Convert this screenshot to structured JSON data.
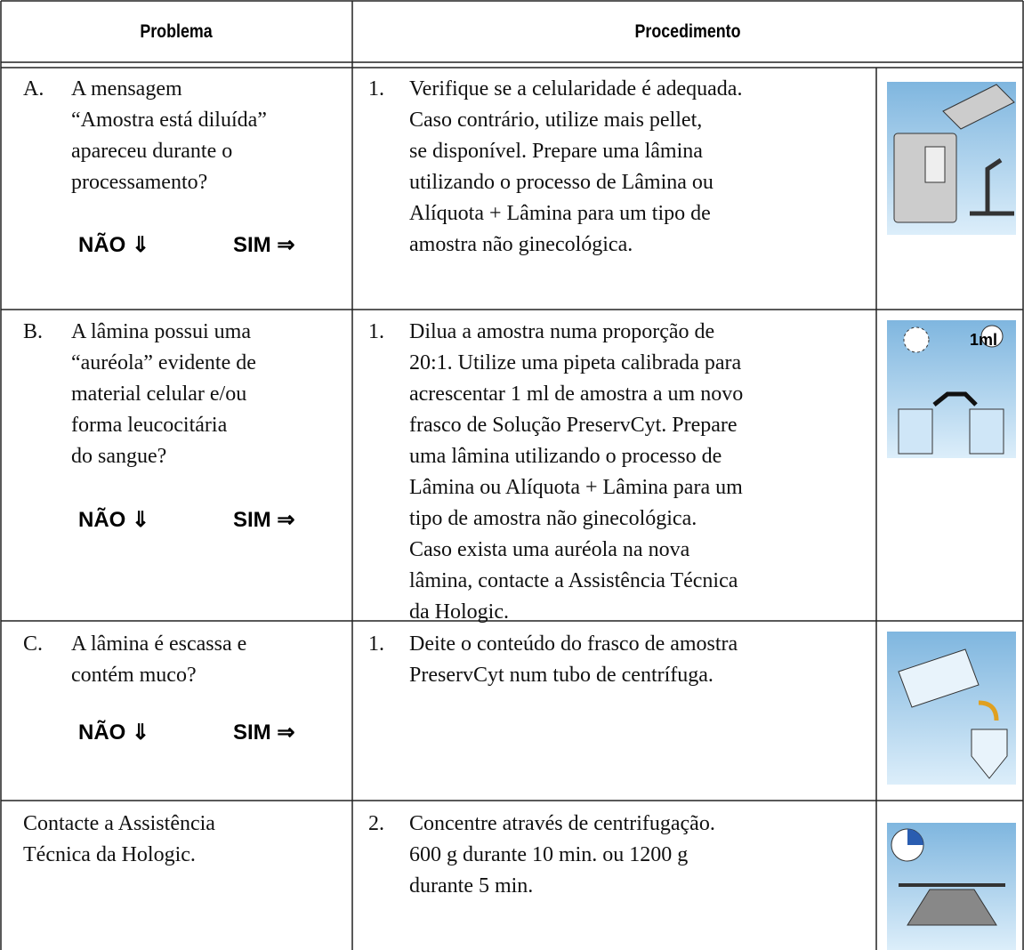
{
  "table": {
    "headers": [
      "Problema",
      "Procedimento"
    ],
    "rows": [
      {
        "label": "A.",
        "problem": [
          "A mensagem",
          "“Amostra está diluída”",
          "apareceu durante o",
          "processamento?"
        ],
        "answers": [
          "NÃO ⇓",
          "SIM ⇒"
        ],
        "step": "1.",
        "procedure": [
          "Verifique se a celularidade é adequada.",
          "Caso contrário, utilize mais pellet,",
          "se disponível. Prepare uma lâmina",
          "utilizando o processo de Lâmina ou",
          "Alíquota + Lâmina para um tipo de",
          "amostra não ginecológica."
        ]
      },
      {
        "label": "B.",
        "problem": [
          "A lâmina possui uma",
          "“auréola” evidente de",
          "material celular e/ou",
          "forma leucocitária",
          "do sangue?"
        ],
        "answers": [
          "NÃO ⇓",
          "SIM ⇒"
        ],
        "step": "1.",
        "procedure": [
          "Dilua a amostra numa proporção de",
          "20:1. Utilize uma pipeta calibrada para",
          "acrescentar 1 ml de amostra a um novo",
          "frasco de Solução PreservCyt. Prepare",
          "uma lâmina utilizando o processo de",
          "Lâmina ou Alíquota + Lâmina para um",
          "tipo de amostra não ginecológica.",
          "Caso exista uma auréola na nova",
          "lâmina, contacte a Assistência Técnica",
          "da Hologic."
        ],
        "icon_text": "1ml"
      },
      {
        "label": "C.",
        "problem": [
          "A lâmina é escassa e",
          "contém muco?"
        ],
        "answers": [
          "NÃO ⇓",
          "SIM ⇒"
        ],
        "step": "1.",
        "procedure": [
          "Deite o conteúdo do frasco de amostra",
          "PreservCyt num tubo de centrífuga."
        ]
      },
      {
        "problem": [
          "Contacte a Assistência",
          "Técnica da Hologic."
        ],
        "step": "2.",
        "procedure": [
          "Concentre através de centrifugação.",
          "600 g durante 10 min. ou 1200 g",
          "durante 5 min."
        ]
      }
    ]
  }
}
